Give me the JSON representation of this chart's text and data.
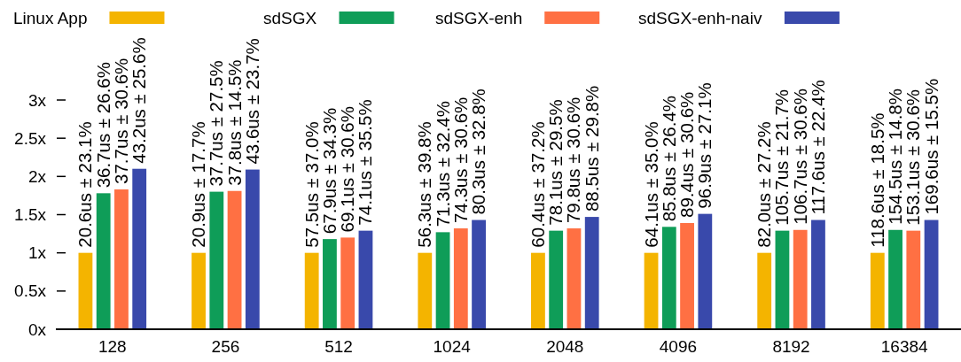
{
  "chart_data": {
    "type": "bar",
    "categories": [
      "128",
      "256",
      "512",
      "1024",
      "2048",
      "4096",
      "8192",
      "16384"
    ],
    "series": [
      {
        "name": "Linux App",
        "color": "#f4b400",
        "values": [
          1,
          1,
          1,
          1,
          1,
          1,
          1,
          1
        ]
      },
      {
        "name": "sdSGX",
        "color": "#0f9d58",
        "values": [
          1.78,
          1.8,
          1.18,
          1.27,
          1.29,
          1.34,
          1.29,
          1.3
        ]
      },
      {
        "name": "sdSGX-enh",
        "color": "#ff7043",
        "values": [
          1.83,
          1.81,
          1.2,
          1.32,
          1.32,
          1.39,
          1.3,
          1.29
        ]
      },
      {
        "name": "sdSGX-enh-naiv",
        "color": "#3949ab",
        "values": [
          2.1,
          2.09,
          1.29,
          1.43,
          1.47,
          1.51,
          1.43,
          1.43
        ]
      }
    ],
    "annotations": [
      {
        "text": "20.6us ± 23.1%",
        "x": "128",
        "y": 1
      },
      {
        "text": "20.9us ± 17.7%",
        "x": "256",
        "y": 1
      },
      {
        "text": "57.5us ± 37.0%",
        "x": "512",
        "y": 1
      },
      {
        "text": "56.3us ± 39.8%",
        "x": "1024",
        "y": 1
      },
      {
        "text": "60.4us ± 37.2%",
        "x": "2048",
        "y": 1
      },
      {
        "text": "64.1us ± 35.0%",
        "x": "4096",
        "y": 1
      },
      {
        "text": "82.0us ± 27.2%",
        "x": "8192",
        "y": 1
      },
      {
        "text": "118.6us ± 18.5%",
        "x": "16384",
        "y": 1
      },
      {
        "text": "36.7us ± 26.6%",
        "x": "128",
        "y": 1.78
      },
      {
        "text": "37.7us ± 27.5%",
        "x": "256",
        "y": 1.8
      },
      {
        "text": "67.9us ± 34.3%",
        "x": "512",
        "y": 1.18
      },
      {
        "text": "71.3us ± 32.4%",
        "x": "1024",
        "y": 1.27
      },
      {
        "text": "78.1us ± 29.5%",
        "x": "2048",
        "y": 1.29
      },
      {
        "text": "85.8us ± 26.4%",
        "x": "4096",
        "y": 1.34
      },
      {
        "text": "105.7us ± 21.7%",
        "x": "8192",
        "y": 1.29
      },
      {
        "text": "154.5us ± 14.8%",
        "x": "16384",
        "y": 1.3
      },
      {
        "text": "37.7us ± 30.6%",
        "x": "128",
        "y": 1.83
      },
      {
        "text": "37.8us ± 14.5%",
        "x": "256",
        "y": 1.81
      },
      {
        "text": "69.1us ± 30.6%",
        "x": "512",
        "y": 1.2
      },
      {
        "text": "74.3us ± 30.6%",
        "x": "1024",
        "y": 1.32
      },
      {
        "text": "79.8us ± 30.6%",
        "x": "2048",
        "y": 1.32
      },
      {
        "text": "89.4us ± 30.6%",
        "x": "4096",
        "y": 1.39
      },
      {
        "text": "106.7us ± 30.6%",
        "x": "8192",
        "y": 1.3
      },
      {
        "text": "153.1us ± 30.6%",
        "x": "16384",
        "y": 1.29
      },
      "43.2us ± 25.6%",
      "43.6us ± 23.7%",
      "74.1us ± 35.5%",
      "80.3us ± 32.8%",
      "88.5us ± 29.8%",
      "96.9us ± 27.1%",
      "117.6us ± 22.4%",
      "169.6us ± 15.5%"
    ],
    "ylim": [
      0,
      3
    ],
    "yticks": [
      {
        "value": 0,
        "label": "0x"
      },
      {
        "value": 0.5,
        "label": "0.5x"
      },
      {
        "value": 1,
        "label": "1x"
      },
      {
        "value": 1.5,
        "label": "1.5x"
      },
      {
        "value": 2,
        "label": "2x"
      },
      {
        "value": 2.5,
        "label": "2.5x"
      },
      {
        "value": 3,
        "label": "3x"
      }
    ],
    "grid": false,
    "legend": "top"
  }
}
